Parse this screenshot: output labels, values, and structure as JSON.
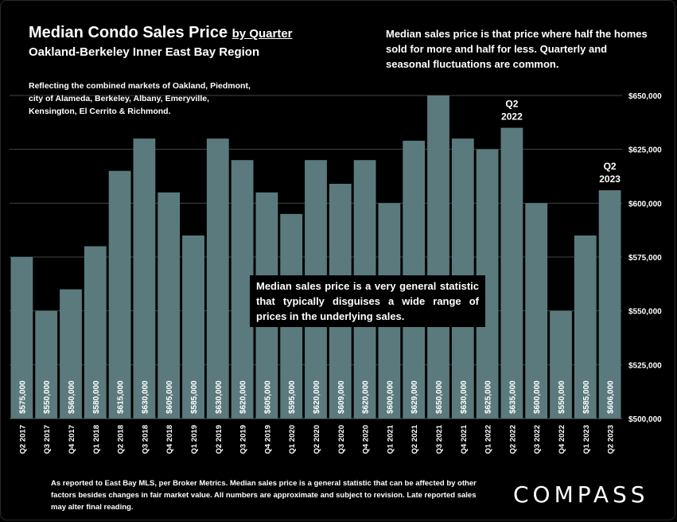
{
  "header": {
    "title": "Median Condo Sales Price",
    "title_suffix": "by Quarter",
    "subtitle": "Oakland-Berkeley Inner East Bay Region",
    "description": "Reflecting the combined markets of Oakland, Piedmont, city of Alameda, Berkeley, Albany, Emeryville, Kensington, El Cerrito & Richmond."
  },
  "notes": {
    "top_right": "Median sales price is that price where half the homes sold for more and half for less. Quarterly and seasonal fluctuations are common.",
    "callout": "Median sales price is a very general statistic that typically disguises a wide range of prices in the underlying sales.",
    "footnote": "As reported to East Bay MLS, per Broker Metrics. Median sales price is a general statistic that can be affected by other factors besides changes in fair market value. All numbers are approximate and subject to revision. Late reported sales may alter final reading."
  },
  "brand": {
    "logo_text": "COMPASS"
  },
  "colors": {
    "bar": "#5B7A7E",
    "background": "#000000",
    "grid": "#444444",
    "text": "#FFFFFF"
  },
  "chart_data": {
    "type": "bar",
    "categories": [
      "Q2 2017",
      "Q3 2017",
      "Q4 2017",
      "Q1 2018",
      "Q2 2018",
      "Q3 2018",
      "Q4 2018",
      "Q1 2019",
      "Q2 2019",
      "Q3 2019",
      "Q4 2019",
      "Q1 2020",
      "Q2 2020",
      "Q3 2020",
      "Q4 2020",
      "Q1 2021",
      "Q2 2021",
      "Q3 2021",
      "Q4 2021",
      "Q1 2022",
      "Q2 2022",
      "Q3 2022",
      "Q4 2022",
      "Q1 2023",
      "Q2 2023"
    ],
    "values": [
      575000,
      550000,
      560000,
      580000,
      615000,
      630000,
      605000,
      585000,
      630000,
      620000,
      605000,
      595000,
      620000,
      609000,
      620000,
      600000,
      629000,
      650000,
      630000,
      625000,
      635000,
      600000,
      550000,
      585000,
      606000
    ],
    "value_labels": [
      "$575,000",
      "$550,000",
      "$560,000",
      "$580,000",
      "$615,000",
      "$630,000",
      "$605,000",
      "$585,000",
      "$630,000",
      "$620,000",
      "$605,000",
      "$595,000",
      "$620,000",
      "$609,000",
      "$620,000",
      "$600,000",
      "$629,000",
      "$650,000",
      "$630,000",
      "$625,000",
      "$635,000",
      "$600,000",
      "$550,000",
      "$585,000",
      "$606,000"
    ],
    "ylim": [
      500000,
      650000
    ],
    "yticks": [
      500000,
      525000,
      550000,
      575000,
      600000,
      625000,
      650000
    ],
    "ytick_labels": [
      "$500,000",
      "$525,000",
      "$550,000",
      "$575,000",
      "$600,000",
      "$625,000",
      "$650,000"
    ],
    "y_axis_position": "right",
    "grid": true,
    "annotations": [
      {
        "category": "Q2 2022",
        "line1": "Q2",
        "line2": "2022"
      },
      {
        "category": "Q2 2023",
        "line1": "Q2",
        "line2": "2023"
      }
    ]
  }
}
